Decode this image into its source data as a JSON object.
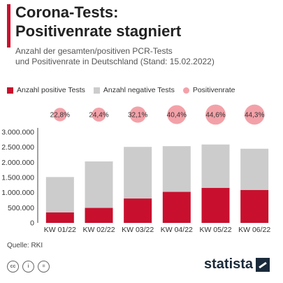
{
  "title_line1": "Corona-Tests:",
  "title_line2": "Positivenrate stagniert",
  "subtitle_line1": "Anzahl der gesamten/positiven PCR-Tests",
  "subtitle_line2": "und Positivenrate in Deutschland (Stand: 15.02.2022)",
  "source": "Quelle: RKI",
  "logo": "statista",
  "colors": {
    "positive": "#c8102e",
    "negative": "#cccccc",
    "rate": "#f3a1a8",
    "accent": "#c8102e"
  },
  "chart_data": {
    "type": "bar",
    "stacked": true,
    "categories": [
      "KW 01/22",
      "KW 02/22",
      "KW 03/22",
      "KW 04/22",
      "KW 05/22",
      "KW 06/22"
    ],
    "series": [
      {
        "name": "Anzahl positive Tests",
        "values": [
          345000,
          495000,
          805000,
          1025000,
          1155000,
          1085000
        ]
      },
      {
        "name": "Anzahl negative Tests",
        "values": [
          1170000,
          1535000,
          1705000,
          1510000,
          1435000,
          1365000
        ]
      }
    ],
    "rate_series": {
      "name": "Positivenrate",
      "labels": [
        "22,8%",
        "24,4%",
        "32,1%",
        "40,4%",
        "44,6%",
        "44,3%"
      ],
      "values": [
        22.8,
        24.4,
        32.1,
        40.4,
        44.6,
        44.3
      ]
    },
    "yticks": [
      "0",
      "500.000",
      "1.000.000",
      "1.500.000",
      "2.000.000",
      "2.500.000",
      "3.000.000"
    ],
    "ylim": [
      0,
      3000000
    ],
    "legend_position": "top"
  }
}
